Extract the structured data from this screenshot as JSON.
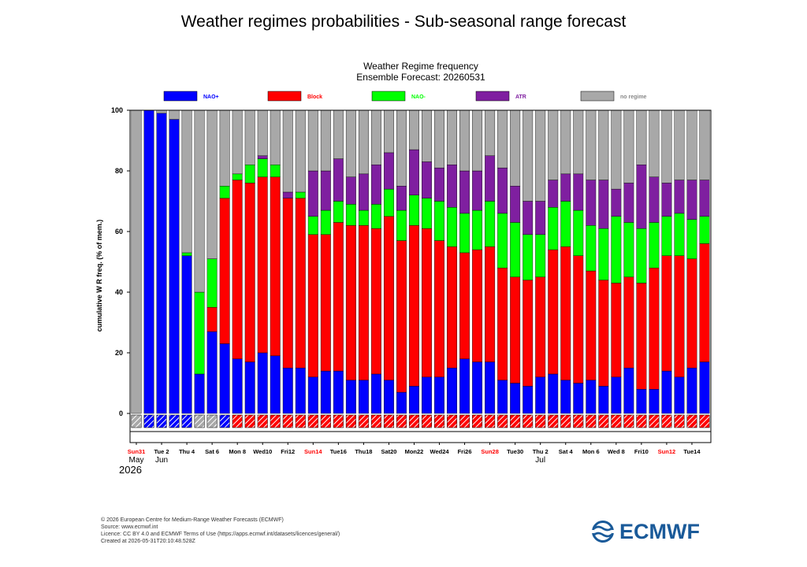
{
  "page_title": "Weather regimes probabilities - Sub-seasonal range forecast",
  "footer": {
    "line1": "© 2026 European Centre for Medium-Range Weather Forecasts (ECMWF)",
    "line2": "Source: www.ecmwf.int",
    "line3": "Licence: CC BY 4.0 and ECMWF Terms of Use (https://apps.ecmwf.int/datasets/licences/general/)",
    "line4": "Created at 2026-05-31T20:10:48.528Z"
  },
  "logo": {
    "text": "ECMWF",
    "color": "#1a5a99"
  },
  "colors": {
    "nao_plus": "#0000ff",
    "block": "#ff0000",
    "nao_minus": "#00ff00",
    "atr": "#7f1fa0",
    "no_regime": "#a8a8a8"
  },
  "chart_data": {
    "type": "bar",
    "stacked": true,
    "title": "Weather Regime frequency",
    "subtitle": "Ensemble Forecast: 20260531",
    "ylabel": "cumulative W R freq. (% of mem.)",
    "ylim": [
      0,
      100
    ],
    "yticks": [
      "0",
      "20",
      "40",
      "60",
      "80",
      "100"
    ],
    "legend_position": "top",
    "legend": [
      "NAO+",
      "Block",
      "NAO-",
      "ATR",
      "no regime"
    ],
    "x_tick_labels": [
      {
        "index": 0,
        "label": "Sun31",
        "red": true
      },
      {
        "index": 2,
        "label": "Tue 2",
        "red": false
      },
      {
        "index": 4,
        "label": "Thu 4",
        "red": false
      },
      {
        "index": 6,
        "label": "Sat 6",
        "red": false
      },
      {
        "index": 8,
        "label": "Mon 8",
        "red": false
      },
      {
        "index": 10,
        "label": "Wed10",
        "red": false
      },
      {
        "index": 12,
        "label": "Fri12",
        "red": false
      },
      {
        "index": 14,
        "label": "Sun14",
        "red": true
      },
      {
        "index": 16,
        "label": "Tue16",
        "red": false
      },
      {
        "index": 18,
        "label": "Thu18",
        "red": false
      },
      {
        "index": 20,
        "label": "Sat20",
        "red": false
      },
      {
        "index": 22,
        "label": "Mon22",
        "red": false
      },
      {
        "index": 24,
        "label": "Wed24",
        "red": false
      },
      {
        "index": 26,
        "label": "Fri26",
        "red": false
      },
      {
        "index": 28,
        "label": "Sun28",
        "red": true
      },
      {
        "index": 30,
        "label": "Tue30",
        "red": false
      },
      {
        "index": 32,
        "label": "Thu 2",
        "red": false
      },
      {
        "index": 34,
        "label": "Sat 4",
        "red": false
      },
      {
        "index": 36,
        "label": "Mon 6",
        "red": false
      },
      {
        "index": 38,
        "label": "Wed 8",
        "red": false
      },
      {
        "index": 40,
        "label": "Fri10",
        "red": false
      },
      {
        "index": 42,
        "label": "Sun12",
        "red": true
      },
      {
        "index": 44,
        "label": "Tue14",
        "red": false
      }
    ],
    "month_labels": [
      {
        "index": 0,
        "label": "May"
      },
      {
        "index": 2,
        "label": "Jun"
      },
      {
        "index": 32,
        "label": "Jul"
      }
    ],
    "year_label": "2026",
    "dominant_regime": [
      "none",
      "nao_plus",
      "nao_plus",
      "nao_plus",
      "nao_plus",
      "none",
      "none",
      "nao_plus",
      "block",
      "block",
      "block",
      "block",
      "block",
      "block",
      "block",
      "block",
      "block",
      "block",
      "block",
      "block",
      "block",
      "block",
      "block",
      "block",
      "block",
      "block",
      "block",
      "block",
      "block",
      "block",
      "block",
      "block",
      "block",
      "block",
      "block",
      "block",
      "block",
      "block",
      "block",
      "block",
      "block",
      "block",
      "block",
      "block",
      "block",
      "block"
    ],
    "series": [
      {
        "name": "NAO+",
        "key": "nao_plus",
        "values": [
          0,
          100,
          99,
          97,
          52,
          13,
          27,
          23,
          18,
          17,
          20,
          19,
          15,
          15,
          12,
          14,
          14,
          11,
          11,
          13,
          11,
          7,
          9,
          12,
          12,
          15,
          18,
          17,
          17,
          11,
          10,
          9,
          12,
          13,
          11,
          10,
          11,
          9,
          12,
          15,
          8,
          8,
          14,
          12,
          15,
          17
        ]
      },
      {
        "name": "Block",
        "key": "block",
        "values": [
          0,
          0,
          0,
          0,
          0,
          0,
          8,
          48,
          59,
          59,
          58,
          59,
          56,
          56,
          47,
          45,
          49,
          51,
          51,
          48,
          54,
          50,
          53,
          49,
          45,
          40,
          35,
          37,
          38,
          37,
          35,
          35,
          33,
          41,
          44,
          42,
          36,
          35,
          31,
          30,
          35,
          40,
          38,
          40,
          36,
          39
        ]
      },
      {
        "name": "NAO-",
        "key": "nao_minus",
        "values": [
          0,
          0,
          0,
          0,
          1,
          27,
          16,
          4,
          2,
          6,
          6,
          4,
          0,
          2,
          6,
          8,
          7,
          7,
          5,
          8,
          9,
          10,
          10,
          10,
          13,
          13,
          13,
          13,
          15,
          18,
          18,
          15,
          14,
          14,
          15,
          15,
          15,
          17,
          22,
          18,
          18,
          15,
          13,
          14,
          13,
          9
        ]
      },
      {
        "name": "ATR",
        "key": "atr",
        "values": [
          0,
          0,
          0,
          0,
          0,
          0,
          0,
          0,
          0,
          0,
          1,
          0,
          2,
          0,
          15,
          13,
          14,
          9,
          12,
          13,
          12,
          8,
          15,
          12,
          11,
          14,
          14,
          13,
          15,
          15,
          12,
          11,
          11,
          9,
          9,
          12,
          15,
          16,
          9,
          13,
          21,
          15,
          11,
          11,
          13,
          12
        ]
      },
      {
        "name": "no regime",
        "key": "no_regime",
        "values": [
          100,
          0,
          1,
          3,
          47,
          60,
          49,
          25,
          21,
          18,
          15,
          18,
          27,
          27,
          20,
          20,
          16,
          22,
          21,
          18,
          14,
          25,
          13,
          17,
          19,
          18,
          20,
          20,
          15,
          19,
          25,
          30,
          30,
          23,
          21,
          21,
          23,
          23,
          26,
          24,
          18,
          22,
          24,
          23,
          23,
          23
        ]
      }
    ]
  }
}
